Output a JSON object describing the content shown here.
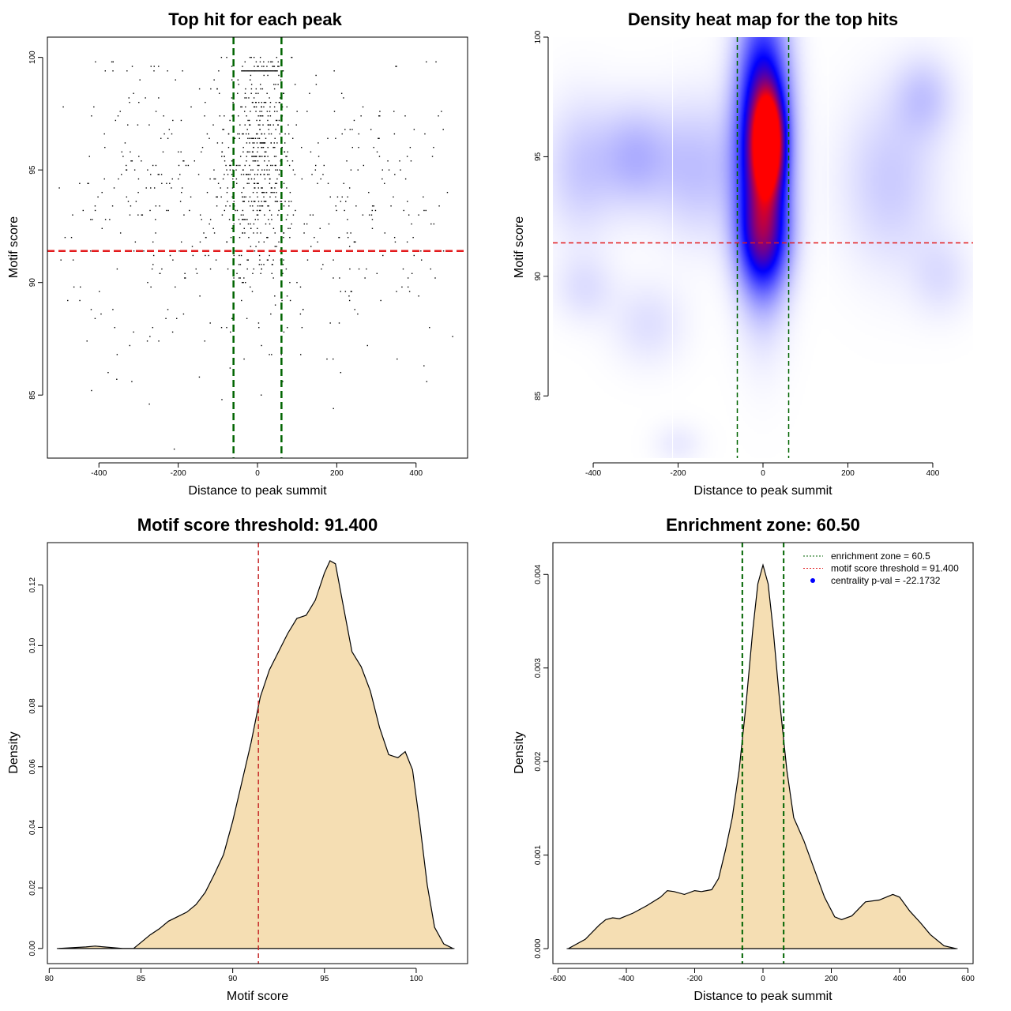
{
  "chart_data": [
    {
      "type": "scatter",
      "title": "Top hit for each peak",
      "xlabel": "Distance to peak summit",
      "ylabel": "Motif score",
      "xlim": [
        -530,
        530
      ],
      "ylim": [
        82.2,
        100.9
      ],
      "xticks": [
        -400,
        -200,
        0,
        200,
        400
      ],
      "yticks": [
        85,
        90,
        95,
        100
      ],
      "grid": false,
      "point_color": "#000000",
      "vlines": [
        -60.5,
        60.5
      ],
      "vline_color": "#006400",
      "hline": 91.4,
      "hline_color": "#e31a1c",
      "clusters": [
        {
          "x": 0,
          "y": 95.8,
          "sx": 42,
          "sy": 2.4,
          "n": 420
        },
        {
          "x": 0,
          "y": 93.0,
          "sx": 60,
          "sy": 2.8,
          "n": 150
        },
        {
          "x": -250,
          "y": 94.0,
          "sx": 120,
          "sy": 3.3,
          "n": 200
        },
        {
          "x": 250,
          "y": 94.0,
          "sx": 120,
          "sy": 3.3,
          "n": 170
        },
        {
          "x": 0,
          "y": 89.0,
          "sx": 260,
          "sy": 2.0,
          "n": 60
        }
      ],
      "notable_points": [
        {
          "x": -210,
          "y": 82.6
        },
        {
          "x": -355,
          "y": 85.7
        },
        {
          "x": -430,
          "y": 87.4
        },
        {
          "x": 420,
          "y": 86.3
        }
      ],
      "top_row_y": 99.4,
      "top_row_x_range": [
        -40,
        50
      ]
    },
    {
      "type": "heatmap",
      "title": "Density heat map for the top hits",
      "xlabel": "Distance to peak summit",
      "ylabel": "Motif score",
      "xlim": [
        -495,
        495
      ],
      "ylim": [
        82.4,
        100.0
      ],
      "xticks": [
        -400,
        -200,
        0,
        200,
        400
      ],
      "yticks": [
        85,
        90,
        95,
        100
      ],
      "colors": [
        "#ffffff",
        "#0000ff",
        "#ff0000"
      ],
      "vlines": [
        -60.5,
        60.5
      ],
      "vline_color": "#006400",
      "hline": 91.4,
      "hline_color": "#e31a1c",
      "white_vlines": [
        -213,
        153
      ],
      "blobs": [
        {
          "x": 12,
          "y": 95.6,
          "sx": 22,
          "sy": 1.3,
          "w": 1.0
        },
        {
          "x": 0,
          "y": 95.5,
          "sx": 42,
          "sy": 3.6,
          "w": 0.8
        },
        {
          "x": 0,
          "y": 91.5,
          "sx": 40,
          "sy": 1.4,
          "w": 0.35
        },
        {
          "x": -300,
          "y": 95.0,
          "sx": 60,
          "sy": 1.5,
          "w": 0.14
        },
        {
          "x": -430,
          "y": 94.5,
          "sx": 60,
          "sy": 2.0,
          "w": 0.1
        },
        {
          "x": 380,
          "y": 97.5,
          "sx": 50,
          "sy": 1.2,
          "w": 0.1
        },
        {
          "x": 300,
          "y": 94.0,
          "sx": 80,
          "sy": 2.5,
          "w": 0.1
        },
        {
          "x": -150,
          "y": 94.5,
          "sx": 70,
          "sy": 2.0,
          "w": 0.12
        },
        {
          "x": -420,
          "y": 89.5,
          "sx": 50,
          "sy": 1.0,
          "w": 0.06
        },
        {
          "x": -270,
          "y": 88.0,
          "sx": 60,
          "sy": 1.2,
          "w": 0.06
        },
        {
          "x": 420,
          "y": 90.0,
          "sx": 50,
          "sy": 1.2,
          "w": 0.06
        },
        {
          "x": -200,
          "y": 83.0,
          "sx": 40,
          "sy": 0.6,
          "w": 0.04
        }
      ]
    },
    {
      "type": "area",
      "title": "Motif score threshold: 91.400",
      "xlabel": "Motif score",
      "ylabel": "Density",
      "xlim": [
        79.9,
        102.8
      ],
      "ylim": [
        -0.005,
        0.134
      ],
      "xticks": [
        80,
        85,
        90,
        95,
        100
      ],
      "yticks": [
        0.0,
        0.02,
        0.04,
        0.06,
        0.08,
        0.1,
        0.12
      ],
      "ytick_labels": [
        "0.00",
        "0.02",
        "0.04",
        "0.06",
        "0.08",
        "0.10",
        "0.12"
      ],
      "fill_color": "#f5deb3",
      "line_color": "#000000",
      "vline": 91.4,
      "vline_color": "#c62828",
      "x": [
        80.5,
        82.0,
        82.5,
        83.0,
        84.0,
        84.6,
        85.0,
        85.5,
        86.0,
        86.5,
        87.0,
        87.5,
        88.0,
        88.5,
        89.0,
        89.5,
        90.0,
        90.5,
        91.0,
        91.5,
        92.0,
        92.5,
        93.0,
        93.5,
        94.0,
        94.5,
        95.0,
        95.3,
        95.6,
        96.0,
        96.5,
        97.0,
        97.5,
        98.0,
        98.5,
        99.0,
        99.4,
        99.8,
        100.2,
        100.6,
        101.0,
        101.5,
        102.0
      ],
      "y": [
        0.0,
        0.0005,
        0.0008,
        0.0005,
        0.0,
        0.0,
        0.002,
        0.0045,
        0.0065,
        0.009,
        0.0105,
        0.012,
        0.0145,
        0.0185,
        0.0245,
        0.031,
        0.042,
        0.055,
        0.068,
        0.083,
        0.092,
        0.098,
        0.104,
        0.109,
        0.11,
        0.115,
        0.124,
        0.128,
        0.127,
        0.114,
        0.098,
        0.093,
        0.085,
        0.073,
        0.064,
        0.063,
        0.065,
        0.059,
        0.041,
        0.021,
        0.007,
        0.0015,
        0.0
      ]
    },
    {
      "type": "area",
      "title": "Enrichment zone: 60.50",
      "xlabel": "Distance to peak summit",
      "ylabel": "Density",
      "xlim": [
        -615,
        615
      ],
      "ylim": [
        -0.00016,
        0.00434
      ],
      "xticks": [
        -600,
        -400,
        -200,
        0,
        200,
        400,
        600
      ],
      "yticks": [
        0.0,
        0.001,
        0.002,
        0.003,
        0.004
      ],
      "ytick_labels": [
        "0.000",
        "0.001",
        "0.002",
        "0.003",
        "0.004"
      ],
      "fill_color": "#f5deb3",
      "line_color": "#000000",
      "vlines": [
        -60.5,
        60.5
      ],
      "vline_color": "#006400",
      "x": [
        -570,
        -520,
        -480,
        -460,
        -440,
        -420,
        -380,
        -340,
        -300,
        -280,
        -260,
        -230,
        -200,
        -180,
        -150,
        -130,
        -110,
        -90,
        -70,
        -50,
        -30,
        -15,
        0,
        15,
        30,
        50,
        70,
        90,
        120,
        150,
        180,
        210,
        230,
        260,
        300,
        340,
        380,
        400,
        430,
        460,
        490,
        530,
        565
      ],
      "y": [
        0.0,
        0.0001,
        0.00025,
        0.00031,
        0.00033,
        0.00032,
        0.00038,
        0.00046,
        0.00055,
        0.00062,
        0.00061,
        0.00058,
        0.00062,
        0.00061,
        0.00063,
        0.00075,
        0.00105,
        0.0014,
        0.0019,
        0.0026,
        0.0034,
        0.0039,
        0.0041,
        0.0039,
        0.0034,
        0.0026,
        0.0019,
        0.0014,
        0.00115,
        0.00085,
        0.00055,
        0.00034,
        0.00031,
        0.00035,
        0.0005,
        0.00052,
        0.00058,
        0.00055,
        0.0004,
        0.00028,
        0.00015,
        3e-05,
        0.0
      ],
      "legend": {
        "position": "top-right",
        "entries": [
          {
            "label": "enrichment zone = 60.5",
            "color": "#006400",
            "style": "dotted-line"
          },
          {
            "label": "motif score threshold = 91.400",
            "color": "#e31a1c",
            "style": "dotted-line"
          },
          {
            "label": "centrality p-val = -22.1732",
            "color": "#0000ff",
            "style": "point"
          }
        ]
      }
    }
  ]
}
